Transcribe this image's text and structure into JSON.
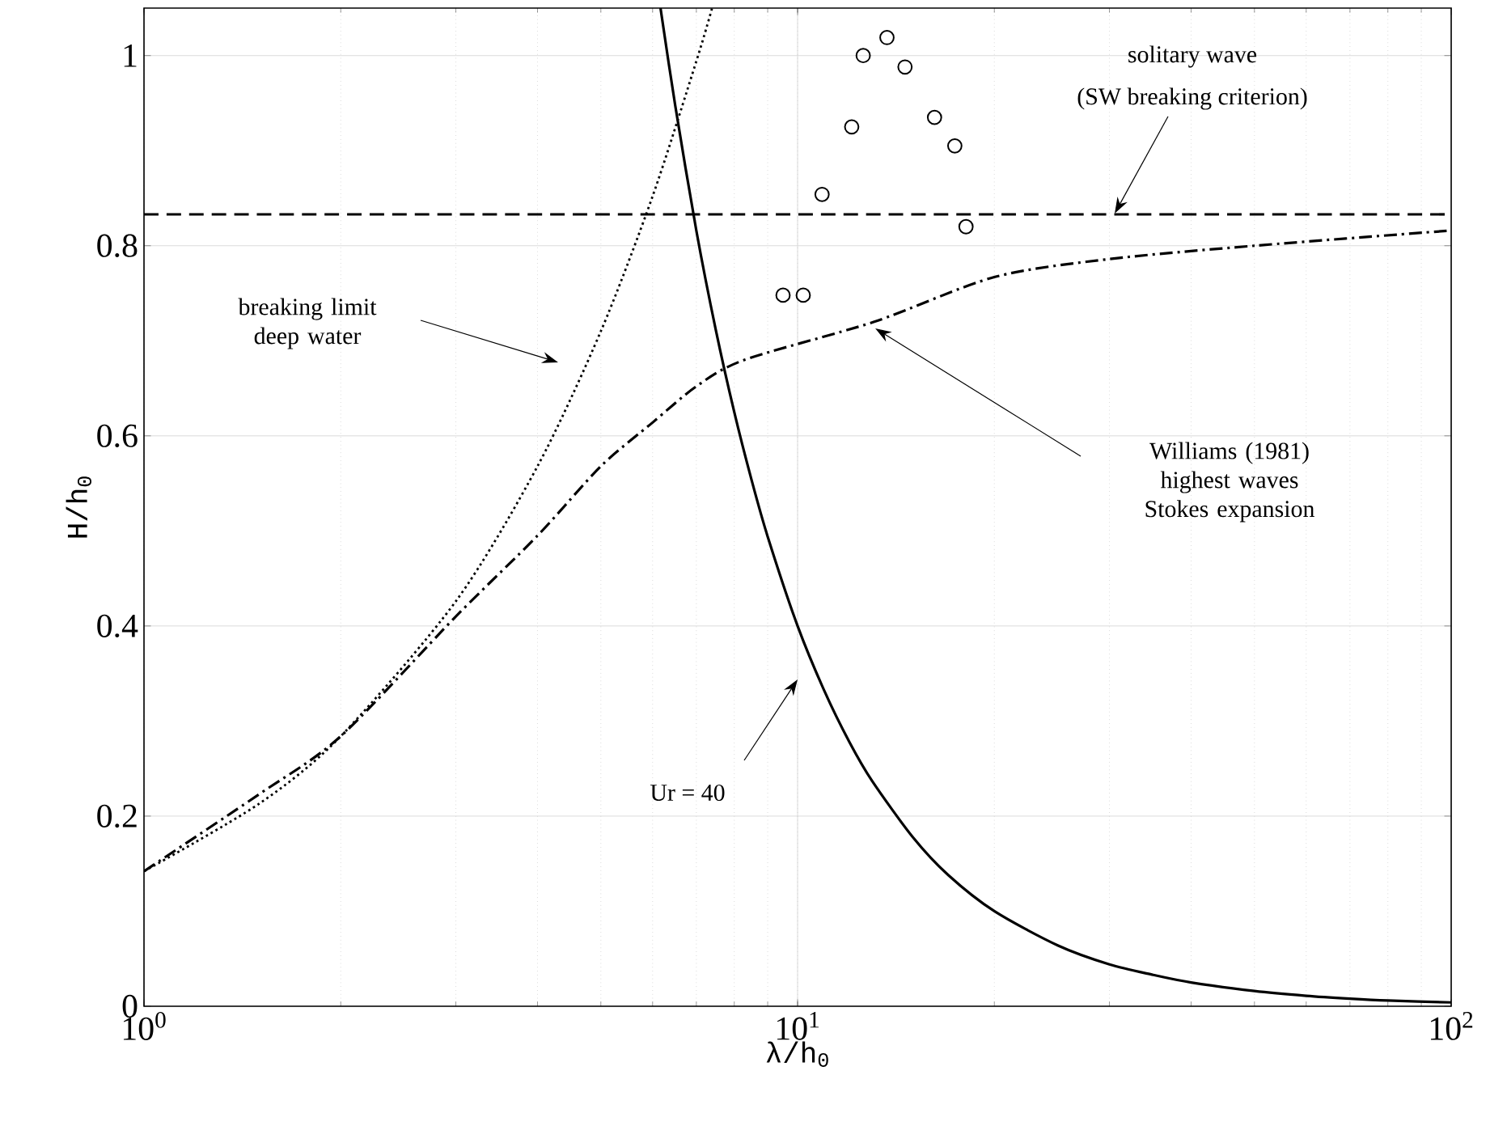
{
  "chart_data": {
    "type": "line",
    "xlabel": "λ/h$_{0}$",
    "ylabel": "H/h$_{0}$",
    "log": "x",
    "grid": true,
    "xlim": [
      1,
      100
    ],
    "ylim": [
      0,
      1.05
    ],
    "xticks": [
      {
        "value": 1,
        "label": "10$^{0}$"
      },
      {
        "value": 10,
        "label": "10$^{1}$"
      },
      {
        "value": 100,
        "label": "10$^{2}$"
      }
    ],
    "yticks": [
      0,
      0.2,
      0.4,
      0.6,
      0.8,
      1
    ],
    "series": [
      {
        "color": "#000000",
        "line_style": "solid",
        "x": [
          6.17,
          6.5,
          7,
          7.5,
          8,
          8.5,
          9,
          10,
          11,
          12,
          13,
          15,
          17,
          20,
          25,
          30,
          35,
          40,
          50,
          60,
          70,
          80,
          100
        ],
        "values": [
          1.05,
          0.947,
          0.816,
          0.711,
          0.625,
          0.554,
          0.494,
          0.4,
          0.331,
          0.278,
          0.237,
          0.178,
          0.138,
          0.1,
          0.064,
          0.044,
          0.033,
          0.025,
          0.016,
          0.011,
          0.008,
          0.006,
          0.004
        ]
      },
      {
        "color": "#000000",
        "line_style": "dotted",
        "x": [
          1,
          1.5,
          2,
          3,
          4,
          5,
          6,
          7,
          7.4
        ],
        "values": [
          0.142,
          0.213,
          0.284,
          0.426,
          0.568,
          0.71,
          0.852,
          0.994,
          1.05
        ]
      },
      {
        "color": "#000000",
        "line_style": "dashdot",
        "x": [
          1,
          1.5,
          2,
          3,
          4,
          5,
          6,
          7,
          8.3,
          13.1,
          20,
          30,
          50,
          100
        ],
        "values": [
          0.142,
          0.223,
          0.284,
          0.41,
          0.495,
          0.568,
          0.614,
          0.652,
          0.68,
          0.72,
          0.767,
          0.786,
          0.8,
          0.816
        ]
      },
      {
        "color": "#000000",
        "line_style": "dashed",
        "x": [
          1,
          100
        ],
        "values": [
          0.833,
          0.833
        ]
      },
      {
        "type": "scatter",
        "color": "#000000",
        "marker": "circle",
        "x": [
          9.5,
          10.2,
          10.9,
          12.1,
          12.6,
          13.7,
          14.6,
          16.2,
          17.4,
          18.1
        ],
        "values": [
          0.748,
          0.748,
          0.854,
          0.925,
          1.0,
          1.019,
          0.988,
          0.935,
          0.905,
          0.82
        ]
      }
    ],
    "annotations": [
      "breaking limit deep water",
      "Williams (1981) highest waves Stokes expansion",
      "solitary wave",
      "(SW breaking criterion)",
      "Ur = 40"
    ]
  }
}
